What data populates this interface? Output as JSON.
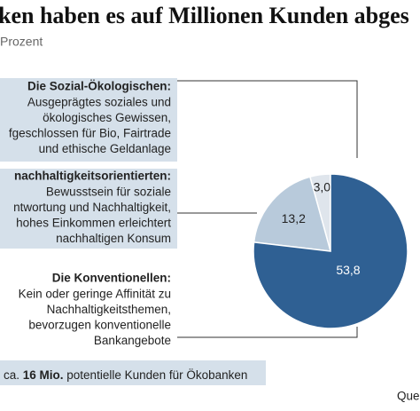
{
  "chart_data": {
    "type": "pie",
    "title": "ken haben es auf Millionen Kunden abges",
    "subtitle": "Prozent",
    "categories": [
      "Die Sozial-Ökologischen:",
      "nachhaltigkeitsorientierten:",
      "Die Konventionellen:"
    ],
    "descriptions": [
      [
        "Ausgeprägtes soziales und",
        "ökologisches Gewissen,",
        "fgeschlossen für Bio, Fairtrade",
        "und ethische Geldanlage"
      ],
      [
        "Bewusstsein für soziale",
        "ntwortung und Nachhaltigkeit,",
        "hohes Einkommen erleichtert",
        "nachhaltigen Konsum"
      ],
      [
        "Kein oder geringe Affinität zu",
        "Nachhaltigkeitsthemen,",
        "bevorzugen konventionelle",
        "Bankangebote"
      ]
    ],
    "values": [
      3.0,
      13.2,
      53.8
    ],
    "value_labels": [
      "3,0",
      "13,2",
      "53,8"
    ],
    "colors": [
      "#dfe5ec",
      "#b8cadb",
      "#2f6093"
    ],
    "label_colors": [
      "#222222",
      "#222222",
      "#ffffff"
    ],
    "note": [
      "ca. ",
      "16 Mio.",
      " potentielle Kunden für Ökobanken"
    ],
    "source": "Que"
  }
}
